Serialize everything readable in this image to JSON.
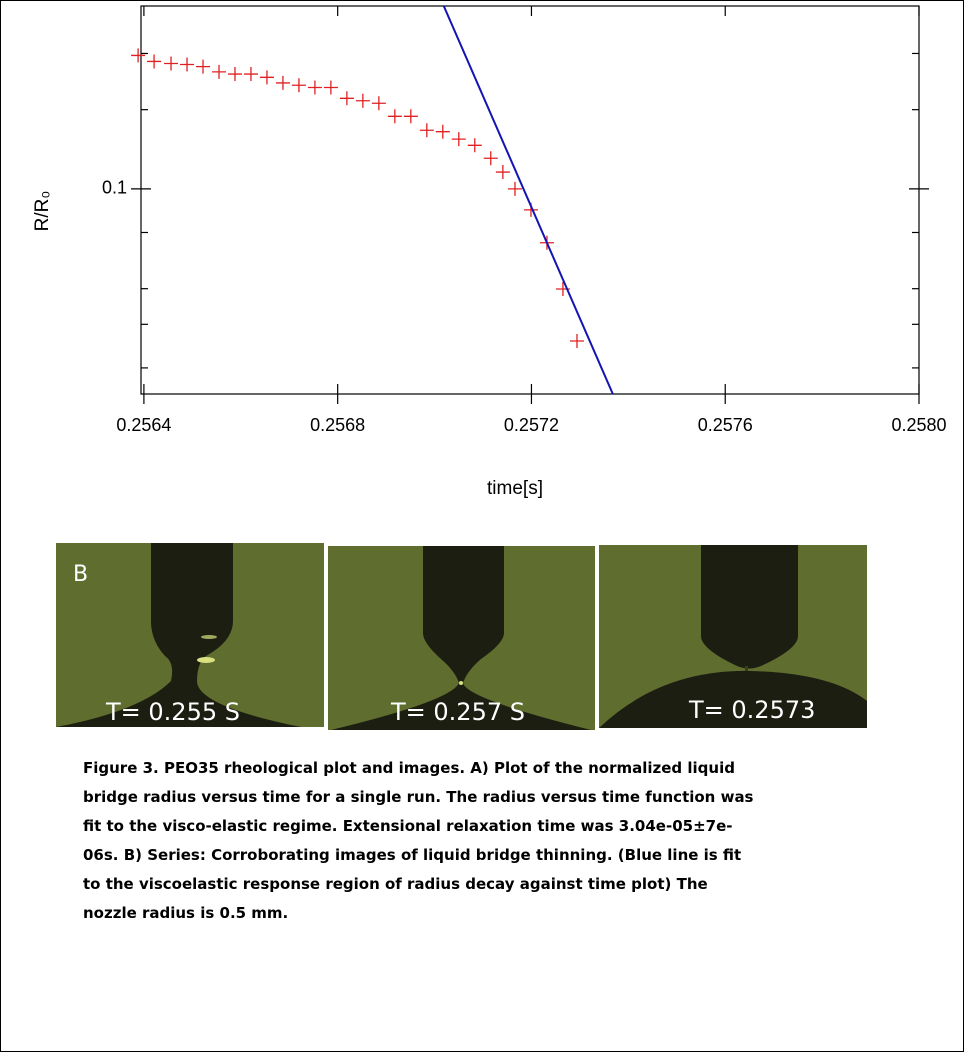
{
  "chart_data": {
    "type": "scatter",
    "y_label": "R/R₀",
    "x_label": "time[s]",
    "yscale": "log",
    "xlim": [
      0.256394,
      0.258
    ],
    "ylim": [
      0.035,
      0.255
    ],
    "xticks": [
      0.2564,
      0.2568,
      0.2572,
      0.2576,
      {
        "value": 0.258,
        "label": "0.2580"
      }
    ],
    "yticks": [
      0.1
    ],
    "yminor": [
      0.04,
      0.05,
      0.06,
      0.08,
      0.15,
      0.2
    ],
    "series": [
      {
        "kind": "markers",
        "color": "#e02020",
        "x": [
          0.256388,
          0.256421,
          0.256456,
          0.256489,
          0.256522,
          0.256555,
          0.256588,
          0.256621,
          0.256654,
          0.256687,
          0.25672,
          0.256753,
          0.256786,
          0.256819,
          0.256852,
          0.256885,
          0.256918,
          0.256951,
          0.256984,
          0.257017,
          0.25705,
          0.257083,
          0.257116,
          0.257141,
          0.257166,
          0.257199,
          0.257232,
          0.257265,
          0.257294
        ],
        "values": [
          0.198,
          0.192,
          0.19,
          0.189,
          0.187,
          0.182,
          0.18,
          0.18,
          0.177,
          0.172,
          0.17,
          0.168,
          0.168,
          0.159,
          0.157,
          0.155,
          0.145,
          0.145,
          0.135,
          0.134,
          0.129,
          0.125,
          0.117,
          0.109,
          0.1,
          0.0898,
          0.0759,
          0.0599,
          0.0459
        ]
      },
      {
        "kind": "line",
        "color": "#1414b4",
        "x": [
          0.257019,
          0.257368
        ],
        "values": [
          0.255,
          0.035
        ]
      }
    ]
  },
  "images": {
    "panel_letter": "B",
    "labels": [
      "T= 0.255 S",
      "T= 0.257 S",
      "T= 0.2573"
    ]
  },
  "caption": [
    "Figure 3. PEO35 rheological plot and images. A) Plot of the normalized liquid",
    "bridge radius versus time for a single run. The radius versus time function was",
    "fit to the visco-elastic regime. Extensional relaxation time was 3.04e-05±7e-",
    "06s. B) Series: Corroborating images of liquid bridge thinning. (Blue line is fit",
    "to the viscoelastic response region of radius decay against time plot) The",
    "nozzle radius is 0.5 mm."
  ]
}
